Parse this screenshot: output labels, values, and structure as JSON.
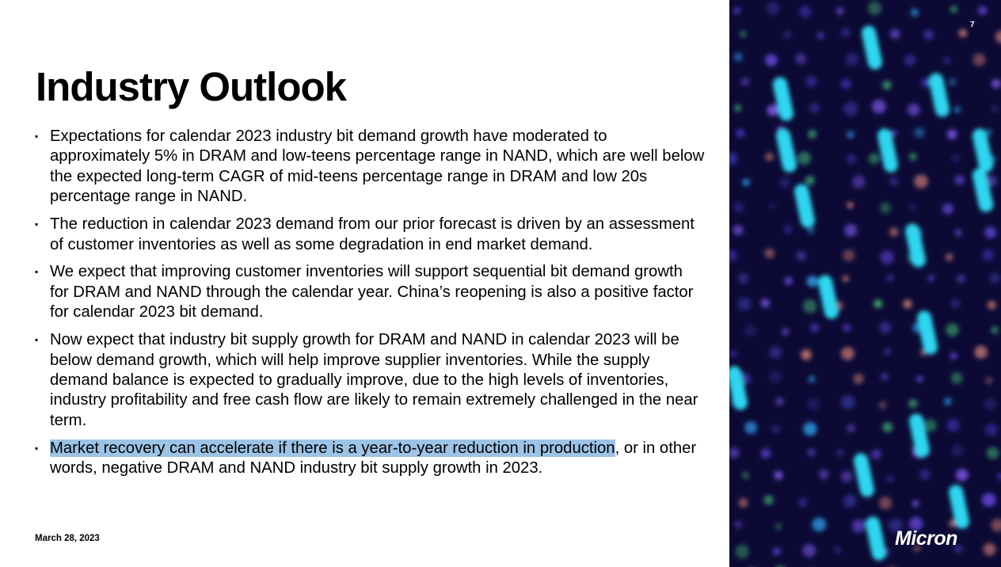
{
  "page_number": "7",
  "title": "Industry Outlook",
  "bullets": [
    "Expectations for calendar 2023 industry bit demand growth have moderated to approximately 5% in DRAM and low-teens percentage range in NAND, which are well below the expected long-term CAGR of mid-teens percentage range in DRAM and low 20s percentage range in NAND.",
    "The reduction in calendar 2023 demand from our prior forecast is driven by an assessment of customer inventories as well as some degradation in end market demand.",
    "We expect that improving customer inventories will support sequential bit demand growth for DRAM and NAND through the calendar year. China’s reopening is also a positive factor for calendar 2023 bit demand.",
    "Now expect that industry bit supply growth for DRAM and NAND in calendar 2023 will be below demand growth, which will help improve supplier inventories. While the supply demand balance is expected to gradually improve, due to the high levels of inventories, industry profitability and free cash flow are likely to remain extremely challenged in the near term.",
    {
      "highlight": "Market recovery can accelerate if there is a year-to-year reduction in production",
      "rest": ", or in other words, negative DRAM and NAND industry bit supply growth in 2023."
    }
  ],
  "date": "March 28, 2023",
  "logo": "Micron"
}
